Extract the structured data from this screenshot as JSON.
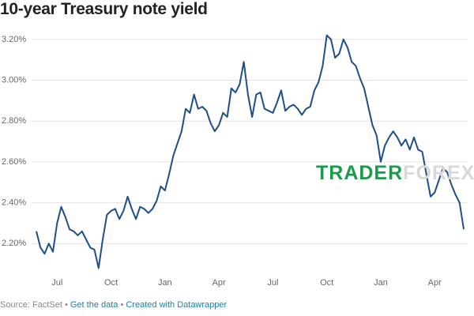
{
  "chart_data": {
    "type": "line",
    "title": "10-year Treasury note yield",
    "categories": [
      null,
      null,
      null,
      null,
      null,
      "Jul",
      null,
      null,
      null,
      null,
      null,
      null,
      null,
      null,
      null,
      null,
      null,
      null,
      "Oct",
      null,
      null,
      null,
      null,
      null,
      null,
      null,
      null,
      null,
      null,
      null,
      null,
      "Jan",
      null,
      null,
      null,
      null,
      null,
      null,
      null,
      null,
      null,
      null,
      null,
      null,
      "Apr",
      null,
      null,
      null,
      null,
      null,
      null,
      null,
      null,
      null,
      null,
      null,
      null,
      "Jul",
      null,
      null,
      null,
      null,
      null,
      null,
      null,
      null,
      null,
      null,
      null,
      null,
      "Oct",
      null,
      null,
      null,
      null,
      null,
      null,
      null,
      null,
      null,
      null,
      null,
      null,
      "Jan",
      null,
      null,
      null,
      null,
      null,
      null,
      null,
      null,
      null,
      null,
      null,
      null,
      "Apr",
      null,
      null,
      null,
      null,
      null,
      null,
      null
    ],
    "series": [
      {
        "name": "10-year Treasury note yield",
        "color": "#1d4e89",
        "values": [
          2.26,
          2.18,
          2.15,
          2.2,
          2.16,
          2.3,
          2.38,
          2.33,
          2.27,
          2.26,
          2.24,
          2.26,
          2.22,
          2.18,
          2.17,
          2.08,
          2.22,
          2.34,
          2.36,
          2.37,
          2.32,
          2.36,
          2.43,
          2.37,
          2.32,
          2.38,
          2.37,
          2.35,
          2.37,
          2.41,
          2.48,
          2.46,
          2.54,
          2.63,
          2.69,
          2.75,
          2.86,
          2.84,
          2.93,
          2.86,
          2.87,
          2.85,
          2.79,
          2.75,
          2.78,
          2.84,
          2.82,
          2.96,
          2.94,
          2.98,
          3.09,
          2.93,
          2.82,
          2.93,
          2.94,
          2.86,
          2.85,
          2.84,
          2.89,
          2.95,
          2.85,
          2.87,
          2.88,
          2.86,
          2.83,
          2.86,
          2.87,
          2.95,
          2.99,
          3.07,
          3.22,
          3.2,
          3.11,
          3.13,
          3.2,
          3.16,
          3.09,
          3.07,
          3.01,
          2.96,
          2.87,
          2.78,
          2.73,
          2.6,
          2.68,
          2.72,
          2.75,
          2.72,
          2.68,
          2.71,
          2.66,
          2.72,
          2.66,
          2.65,
          2.54,
          2.43,
          2.45,
          2.51,
          2.57,
          2.55,
          2.49,
          2.44,
          2.4,
          2.27
        ]
      }
    ],
    "ylim": [
      2.0,
      3.3
    ],
    "yticks": [
      {
        "value": 2.2,
        "label": "2.20%"
      },
      {
        "value": 2.4,
        "label": "2.40%"
      },
      {
        "value": 2.6,
        "label": "2.60%"
      },
      {
        "value": 2.8,
        "label": "2.80%"
      },
      {
        "value": 3.0,
        "label": "3.00%"
      },
      {
        "value": 3.2,
        "label": "3.20%"
      }
    ],
    "grid": true,
    "source": "Source: FactSet",
    "separator": "•",
    "links": [
      "Get the data",
      "Created with Datawrapper"
    ],
    "watermark": [
      "TRADER",
      "FOREX"
    ]
  }
}
